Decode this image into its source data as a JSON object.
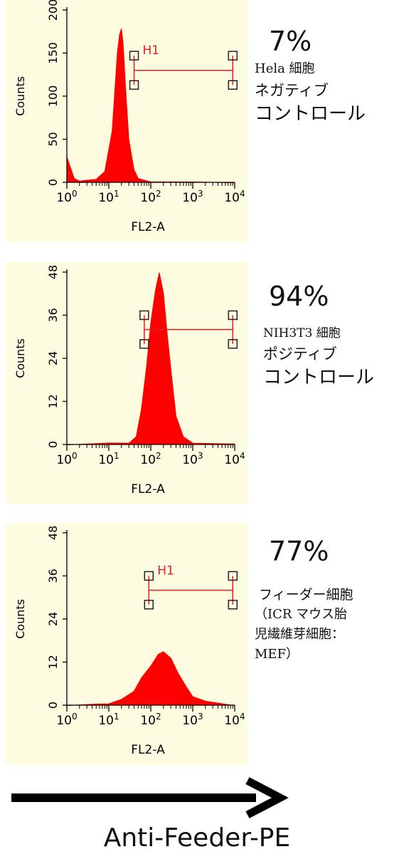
{
  "chart_data": [
    {
      "type": "histogram",
      "xlabel": "FL2-A",
      "ylabel": "Counts",
      "x_scale": "log",
      "xlim": [
        1,
        10000
      ],
      "x_ticks": [
        "10^0",
        "10^1",
        "10^2",
        "10^3",
        "10^4"
      ],
      "ylim": [
        0,
        200
      ],
      "y_ticks": [
        0,
        50,
        100,
        150,
        200
      ],
      "gate": {
        "label": "H1",
        "x_start": 40,
        "x_end": 9000,
        "y": 130,
        "y_span": [
          113,
          147
        ]
      },
      "peak": {
        "x": 20,
        "y": 178
      },
      "histogram": {
        "x": [
          1,
          1.5,
          2,
          3,
          5,
          8,
          12,
          16,
          18,
          20,
          22,
          25,
          30,
          40,
          50,
          70,
          100,
          1000,
          10000
        ],
        "counts": [
          30,
          4,
          2,
          2,
          4,
          12,
          60,
          150,
          172,
          178,
          160,
          110,
          50,
          14,
          5,
          2,
          1,
          0,
          0
        ]
      },
      "percent": "7%",
      "annotation": [
        "Hela 細胞",
        "ネガティブ",
        "コントロール"
      ]
    },
    {
      "type": "histogram",
      "xlabel": "FL2-A",
      "ylabel": "Counts",
      "x_scale": "log",
      "xlim": [
        1,
        10000
      ],
      "x_ticks": [
        "10^0",
        "10^1",
        "10^2",
        "10^3",
        "10^4"
      ],
      "ylim": [
        0,
        48
      ],
      "y_ticks": [
        0,
        12,
        24,
        36,
        48
      ],
      "gate": {
        "label": "",
        "x_start": 70,
        "x_end": 9000,
        "y": 32,
        "y_span": [
          28,
          36
        ]
      },
      "peak": {
        "x": 160,
        "y": 48
      },
      "histogram": {
        "x": [
          1,
          10,
          30,
          45,
          60,
          80,
          100,
          130,
          160,
          200,
          250,
          320,
          400,
          600,
          1000,
          10000
        ],
        "counts": [
          0,
          0.3,
          0.5,
          2,
          10,
          22,
          34,
          43,
          48,
          42,
          30,
          18,
          8,
          2,
          0.5,
          0
        ]
      },
      "percent": "94%",
      "annotation": [
        "NIH3T3 細胞",
        "ポジティブ",
        "コントロール"
      ]
    },
    {
      "type": "histogram",
      "xlabel": "FL2-A",
      "ylabel": "Counts",
      "x_scale": "log",
      "xlim": [
        1,
        10000
      ],
      "x_ticks": [
        "10^0",
        "10^1",
        "10^2",
        "10^3",
        "10^4"
      ],
      "ylim": [
        0,
        48
      ],
      "y_ticks": [
        0,
        12,
        24,
        36,
        48
      ],
      "gate": {
        "label": "H1",
        "x_start": 90,
        "x_end": 9000,
        "y": 32,
        "y_span": [
          28,
          36
        ]
      },
      "peak": {
        "x": 200,
        "y": 15
      },
      "histogram": {
        "x": [
          1,
          5,
          10,
          20,
          40,
          60,
          100,
          150,
          200,
          300,
          450,
          700,
          1000,
          2000,
          10000
        ],
        "counts": [
          0,
          0.2,
          0.5,
          1.5,
          4,
          7.5,
          11,
          14,
          15,
          13,
          9,
          5,
          2.5,
          1,
          0
        ]
      },
      "percent": "77%",
      "annotation": [
        "フィーダー細胞",
        "（ICR マウス胎",
        "児繊維芽細胞：",
        "MEF）"
      ]
    }
  ],
  "footer": {
    "xaxis_title": "Anti-Feeder-PE"
  },
  "colors": {
    "plot_background": "#fdfbe0",
    "histogram_fill": "#ff0000",
    "gate_color": "#e02020",
    "gate_marker": "#222222"
  }
}
